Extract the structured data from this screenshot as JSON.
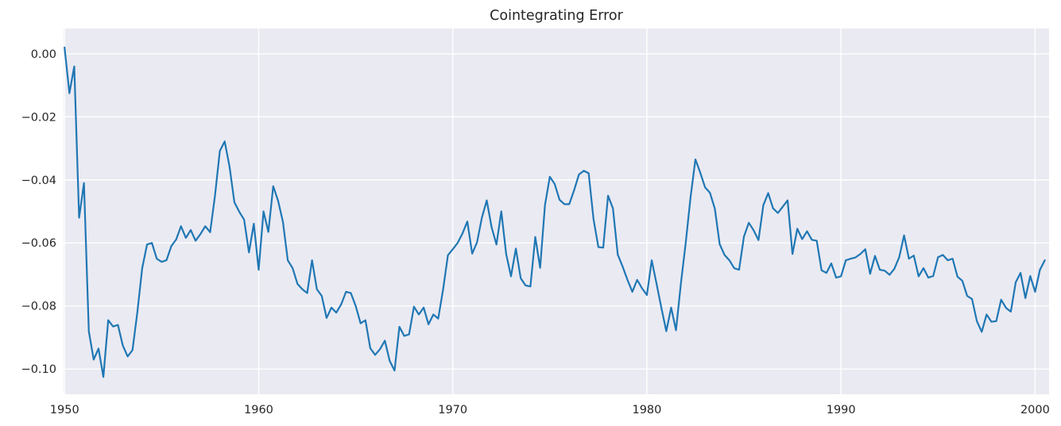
{
  "title": "Cointegrating Error",
  "colors": {
    "line": "#1f77b4",
    "plot_background": "#eaeaf2",
    "grid": "#ffffff",
    "text": "#262626",
    "figure_background": "#ffffff"
  },
  "chart_data": {
    "type": "line",
    "title": "Cointegrating Error",
    "xlabel": "",
    "ylabel": "",
    "grid": true,
    "legend_position": "none",
    "x_start": 1950.0,
    "x_step": 0.25,
    "xlim": [
      1949.95,
      2000.72
    ],
    "ylim": [
      -0.108,
      0.008
    ],
    "x_ticks": [
      1950,
      1960,
      1970,
      1980,
      1990,
      2000
    ],
    "x_tick_labels": [
      "1950",
      "1960",
      "1970",
      "1980",
      "1990",
      "2000"
    ],
    "y_ticks": [
      0.0,
      -0.02,
      -0.04,
      -0.06,
      -0.08,
      -0.1
    ],
    "y_tick_labels": [
      "0.00",
      "−0.02",
      "−0.04",
      "−0.06",
      "−0.08",
      "−0.10"
    ],
    "series": [
      {
        "name": "cointegrating_error",
        "values": [
          0.002,
          -0.0125,
          -0.004,
          -0.052,
          -0.041,
          -0.088,
          -0.097,
          -0.0935,
          -0.1025,
          -0.0845,
          -0.0865,
          -0.086,
          -0.0925,
          -0.096,
          -0.094,
          -0.082,
          -0.068,
          -0.0605,
          -0.06,
          -0.065,
          -0.066,
          -0.0655,
          -0.061,
          -0.0589,
          -0.0547,
          -0.0584,
          -0.0559,
          -0.0593,
          -0.0572,
          -0.0547,
          -0.0566,
          -0.045,
          -0.0308,
          -0.0278,
          -0.0358,
          -0.0471,
          -0.0501,
          -0.0526,
          -0.063,
          -0.0539,
          -0.0685,
          -0.05,
          -0.0565,
          -0.042,
          -0.0466,
          -0.0533,
          -0.0655,
          -0.068,
          -0.073,
          -0.0747,
          -0.0759,
          -0.0655,
          -0.0747,
          -0.0768,
          -0.0838,
          -0.0805,
          -0.0821,
          -0.0795,
          -0.0755,
          -0.0759,
          -0.08,
          -0.0855,
          -0.0845,
          -0.0934,
          -0.0955,
          -0.0937,
          -0.091,
          -0.0974,
          -0.1005,
          -0.0866,
          -0.0895,
          -0.089,
          -0.0802,
          -0.0827,
          -0.0805,
          -0.0858,
          -0.0827,
          -0.084,
          -0.0748,
          -0.0639,
          -0.062,
          -0.06,
          -0.057,
          -0.0532,
          -0.0634,
          -0.0598,
          -0.052,
          -0.0465,
          -0.055,
          -0.0605,
          -0.05,
          -0.0635,
          -0.0706,
          -0.0618,
          -0.0712,
          -0.0735,
          -0.0738,
          -0.0581,
          -0.0679,
          -0.048,
          -0.039,
          -0.0413,
          -0.0463,
          -0.0477,
          -0.0477,
          -0.0433,
          -0.0383,
          -0.0371,
          -0.0379,
          -0.0524,
          -0.0613,
          -0.0615,
          -0.045,
          -0.049,
          -0.0637,
          -0.0675,
          -0.0717,
          -0.0755,
          -0.0717,
          -0.0744,
          -0.0765,
          -0.0655,
          -0.073,
          -0.0807,
          -0.088,
          -0.0805,
          -0.0877,
          -0.073,
          -0.06,
          -0.0455,
          -0.0335,
          -0.0377,
          -0.0424,
          -0.0441,
          -0.0491,
          -0.0604,
          -0.0638,
          -0.0655,
          -0.068,
          -0.0685,
          -0.058,
          -0.0536,
          -0.056,
          -0.0591,
          -0.048,
          -0.0442,
          -0.049,
          -0.0505,
          -0.0485,
          -0.0465,
          -0.0635,
          -0.0555,
          -0.0588,
          -0.0563,
          -0.059,
          -0.0593,
          -0.0687,
          -0.0695,
          -0.0665,
          -0.071,
          -0.0706,
          -0.0655,
          -0.065,
          -0.0646,
          -0.0635,
          -0.062,
          -0.0698,
          -0.0641,
          -0.0685,
          -0.0688,
          -0.0701,
          -0.0682,
          -0.0645,
          -0.0576,
          -0.065,
          -0.064,
          -0.0706,
          -0.068,
          -0.071,
          -0.0705,
          -0.0645,
          -0.0638,
          -0.0655,
          -0.065,
          -0.0707,
          -0.072,
          -0.0768,
          -0.0778,
          -0.0848,
          -0.0882,
          -0.0827,
          -0.085,
          -0.0848,
          -0.078,
          -0.0806,
          -0.0818,
          -0.0725,
          -0.0695,
          -0.0775,
          -0.0705,
          -0.0755,
          -0.0685,
          -0.0655
        ]
      }
    ]
  }
}
